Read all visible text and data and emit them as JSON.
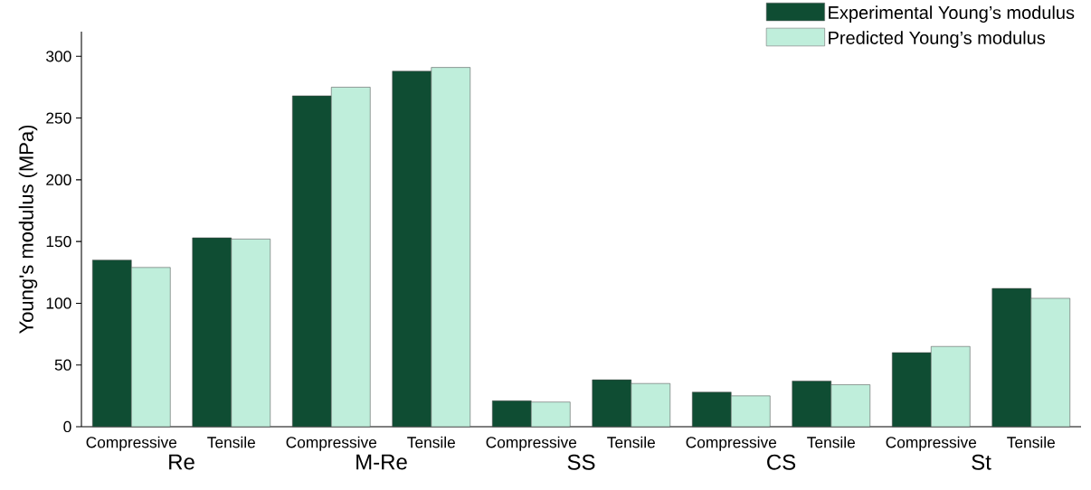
{
  "chart_data": {
    "type": "bar",
    "ylabel": "Young's modulus (MPa)",
    "categories": [
      "Compressive",
      "Tensile",
      "Compressive",
      "Tensile",
      "Compressive",
      "Tensile",
      "Compressive",
      "Tensile",
      "Compressive",
      "Tensile"
    ],
    "series": [
      {
        "name": "Experimental Young’s modulus",
        "color": "#0f4d33",
        "values": [
          135,
          153,
          268,
          288,
          21,
          38,
          28,
          37,
          60,
          112
        ]
      },
      {
        "name": "Predicted Young’s modulus",
        "color": "#bfeedb",
        "values": [
          129,
          152,
          275,
          291,
          20,
          35,
          25,
          34,
          65,
          104
        ]
      }
    ],
    "annotations": [
      "Re",
      "M-Re",
      "SS",
      "CS",
      "St"
    ],
    "ylim": [
      0,
      320
    ],
    "yticks": [
      0,
      50,
      100,
      150,
      200,
      250,
      300
    ],
    "legend": "top right"
  }
}
